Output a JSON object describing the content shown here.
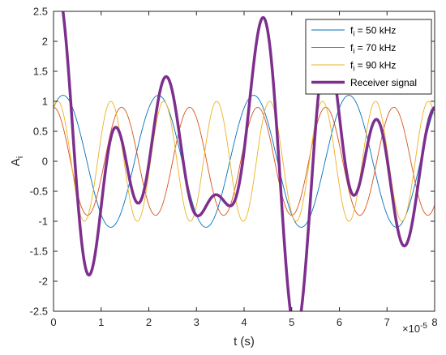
{
  "chart_data": {
    "type": "line",
    "xlabel": "t (s)",
    "ylabel_main": "A",
    "ylabel_sub": "i",
    "x_exponent_base": "×10",
    "x_exponent_power": "-5",
    "x_scale": 1e-05,
    "xlim": [
      0,
      8
    ],
    "ylim": [
      -2.5,
      2.5
    ],
    "x_ticks": [
      "0",
      "1",
      "2",
      "3",
      "4",
      "5",
      "6",
      "7",
      "8"
    ],
    "y_ticks": [
      "-2.5",
      "-2",
      "-1.5",
      "-1",
      "-0.5",
      "0",
      "0.5",
      "1",
      "1.5",
      "2",
      "2.5"
    ],
    "grid": false,
    "legend_position": "top-right",
    "series": [
      {
        "name": "f_i = 50 kHz",
        "legend_main": "f",
        "legend_sub": "i",
        "legend_rest": " = 50 kHz",
        "color": "#0072BD",
        "line_width": 0.9,
        "frequency_hz": 50000,
        "amplitude": 1.1,
        "phase_rad": 0.63
      },
      {
        "name": "f_i = 70 kHz",
        "legend_main": "f",
        "legend_sub": "i",
        "legend_rest": " = 70 kHz",
        "color": "#D95319",
        "line_width": 0.9,
        "frequency_hz": 70000,
        "amplitude": 0.9,
        "phase_rad": 0.0
      },
      {
        "name": "f_i = 90 kHz",
        "legend_main": "f",
        "legend_sub": "i",
        "legend_rest": " = 90 kHz",
        "color": "#EDB120",
        "line_width": 0.9,
        "frequency_hz": 90000,
        "amplitude": 1.0,
        "phase_rad": 0.52
      },
      {
        "name": "Receiver signal",
        "legend_main": "Receiver signal",
        "legend_sub": "",
        "legend_rest": "",
        "color": "#7E2F8E",
        "line_width": 3.5,
        "is_sum": true
      }
    ]
  }
}
